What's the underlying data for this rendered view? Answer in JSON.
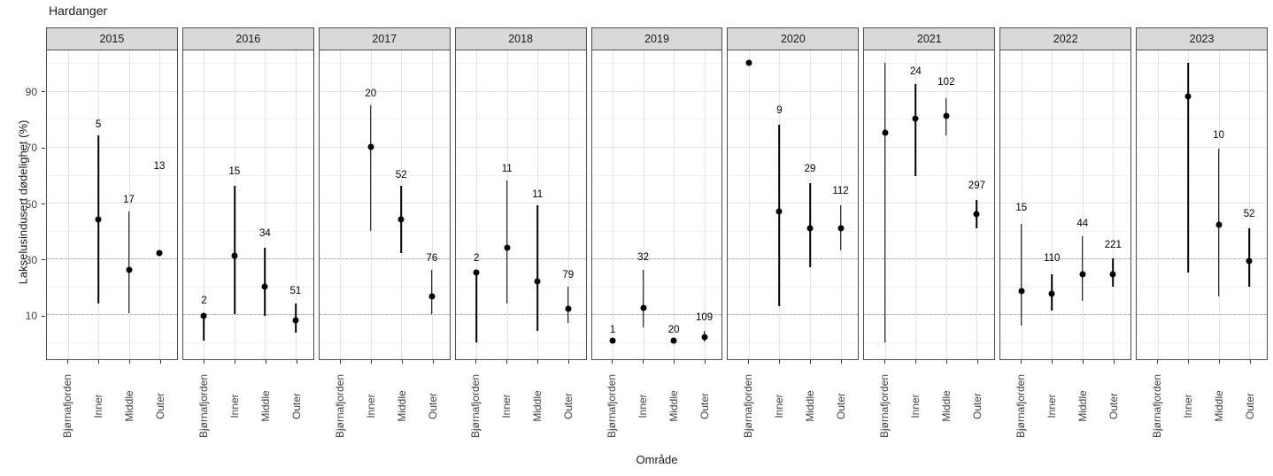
{
  "chart_data": {
    "type": "scatter",
    "subtype": "faceted-pointrange",
    "title": "Hardanger",
    "xlabel": "Område",
    "ylabel": "Lakselusindusert dødelighet (%)",
    "categories": [
      "Bjørnafjorden",
      "Inner",
      "Middle",
      "Outer"
    ],
    "y_ticks": [
      10,
      30,
      50,
      70,
      90
    ],
    "y_minor_gridlines": [
      0,
      20,
      40,
      60,
      80,
      100
    ],
    "ylim": [
      -6,
      104.5
    ],
    "reference_lines": [
      10,
      30
    ],
    "legend": "none",
    "grid": "on",
    "style": {
      "point_color": "#000000",
      "bar_color": "#000000",
      "strip_fill": "#d9d9d9",
      "panel_border": "#4d4d4d",
      "refline_color": "#b3b3b3",
      "gridline_color": "#e3e3e3"
    },
    "facets": [
      {
        "year": "2015",
        "points": [
          {
            "area": "Inner",
            "n": "5",
            "y": 44,
            "lo": 14,
            "hi": 74,
            "ny": 78
          },
          {
            "area": "Middle",
            "n": "17",
            "y": 26,
            "lo": 10.5,
            "hi": 47,
            "ny": 51
          },
          {
            "area": "Outer",
            "n": "13",
            "y": 32,
            "lo": null,
            "hi": null,
            "ny": 63
          }
        ]
      },
      {
        "year": "2016",
        "points": [
          {
            "area": "Bjørnafjorden",
            "n": "2",
            "y": 9.5,
            "lo": 0.5,
            "hi": 10.5,
            "ny": 15
          },
          {
            "area": "Inner",
            "n": "15",
            "y": 31,
            "lo": 10,
            "hi": 56,
            "ny": 61
          },
          {
            "area": "Middle",
            "n": "34",
            "y": 20,
            "lo": 9.5,
            "hi": 34,
            "ny": 39
          },
          {
            "area": "Outer",
            "n": "51",
            "y": 8,
            "lo": 3.5,
            "hi": 14,
            "ny": 18.5
          }
        ]
      },
      {
        "year": "2017",
        "points": [
          {
            "area": "Inner",
            "n": "20",
            "y": 70,
            "lo": 40,
            "hi": 85,
            "ny": 89
          },
          {
            "area": "Middle",
            "n": "52",
            "y": 44,
            "lo": 32,
            "hi": 56,
            "ny": 60
          },
          {
            "area": "Outer",
            "n": "76",
            "y": 16.5,
            "lo": 10,
            "hi": 26,
            "ny": 30
          }
        ]
      },
      {
        "year": "2018",
        "points": [
          {
            "area": "Bjørnafjorden",
            "n": "2",
            "y": 25,
            "lo": 0,
            "hi": 25.5,
            "ny": 30
          },
          {
            "area": "Inner",
            "n": "11",
            "y": 34,
            "lo": 14,
            "hi": 58,
            "ny": 62
          },
          {
            "area": "Middle",
            "n": "11",
            "y": 22,
            "lo": 4,
            "hi": 49,
            "ny": 53
          },
          {
            "area": "Outer",
            "n": "79",
            "y": 12,
            "lo": 7,
            "hi": 20,
            "ny": 24
          }
        ]
      },
      {
        "year": "2019",
        "points": [
          {
            "area": "Bjørnafjorden",
            "n": "1",
            "y": 0.5,
            "lo": null,
            "hi": null,
            "ny": 4.5
          },
          {
            "area": "Inner",
            "n": "32",
            "y": 12.5,
            "lo": 5.5,
            "hi": 26,
            "ny": 30.5
          },
          {
            "area": "Middle",
            "n": "20",
            "y": 0.5,
            "lo": null,
            "hi": null,
            "ny": 4.5
          },
          {
            "area": "Outer",
            "n": "109",
            "y": 1.8,
            "lo": 0.2,
            "hi": 4,
            "ny": 9
          }
        ]
      },
      {
        "year": "2020",
        "points": [
          {
            "area": "Bjørnafjorden",
            "n": null,
            "y": 100,
            "lo": null,
            "hi": null,
            "ny": null
          },
          {
            "area": "Inner",
            "n": "9",
            "y": 47,
            "lo": 13,
            "hi": 78,
            "ny": 83
          },
          {
            "area": "Middle",
            "n": "29",
            "y": 41,
            "lo": 27,
            "hi": 57,
            "ny": 62
          },
          {
            "area": "Outer",
            "n": "112",
            "y": 41,
            "lo": 33,
            "hi": 49,
            "ny": 54
          }
        ]
      },
      {
        "year": "2021",
        "points": [
          {
            "area": "Bjørnafjorden",
            "n": null,
            "y": 75,
            "lo": 0,
            "hi": 100,
            "ny": null
          },
          {
            "area": "Inner",
            "n": "24",
            "y": 80,
            "lo": 59.5,
            "hi": 92.5,
            "ny": 97
          },
          {
            "area": "Middle",
            "n": "102",
            "y": 81,
            "lo": 74,
            "hi": 87.5,
            "ny": 93
          },
          {
            "area": "Outer",
            "n": "297",
            "y": 46,
            "lo": 41,
            "hi": 51,
            "ny": 56
          }
        ]
      },
      {
        "year": "2022",
        "points": [
          {
            "area": "Bjørnafjorden",
            "n": "15",
            "y": 18.5,
            "lo": 6,
            "hi": 42.5,
            "ny": 48
          },
          {
            "area": "Inner",
            "n": "110",
            "y": 17.5,
            "lo": 11.5,
            "hi": 24.5,
            "ny": 30
          },
          {
            "area": "Middle",
            "n": "44",
            "y": 24.5,
            "lo": 15,
            "hi": 38,
            "ny": 42.5
          },
          {
            "area": "Outer",
            "n": "221",
            "y": 24.5,
            "lo": 20,
            "hi": 30,
            "ny": 35
          }
        ]
      },
      {
        "year": "2023",
        "points": [
          {
            "area": "Inner",
            "n": null,
            "y": 88,
            "lo": 25,
            "hi": 100,
            "ny": null
          },
          {
            "area": "Middle",
            "n": "10",
            "y": 42,
            "lo": 16.5,
            "hi": 69.5,
            "ny": 74
          },
          {
            "area": "Outer",
            "n": "52",
            "y": 29,
            "lo": 20,
            "hi": 41,
            "ny": 46
          }
        ]
      }
    ]
  }
}
